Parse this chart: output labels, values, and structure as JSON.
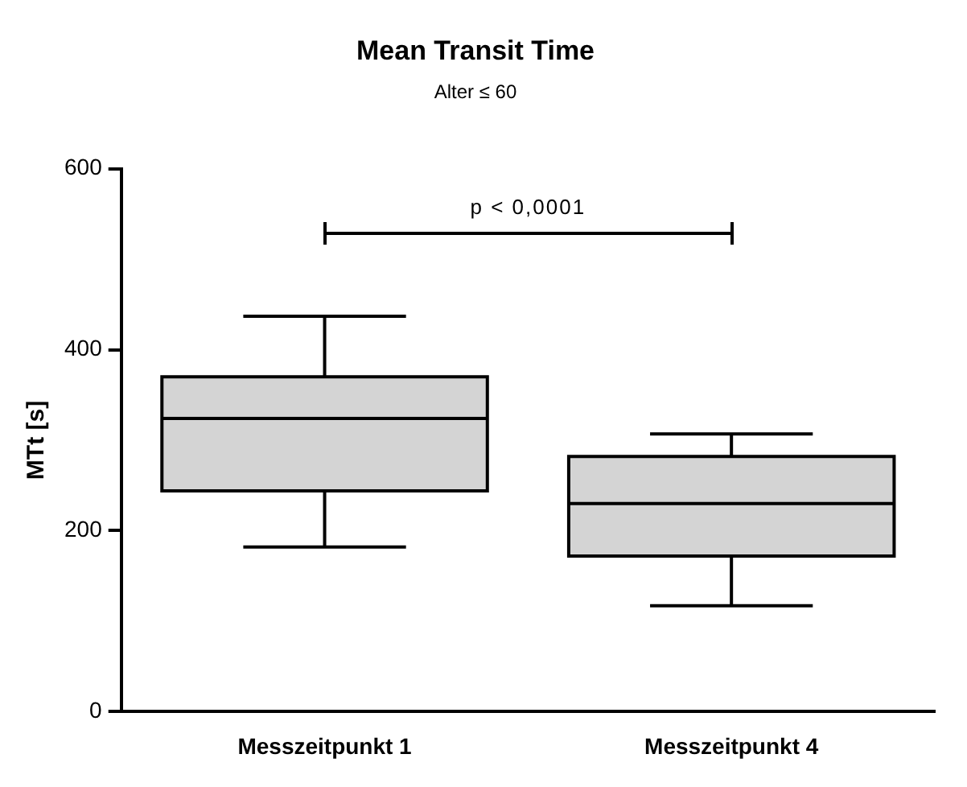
{
  "chart_data": {
    "type": "box",
    "title": "Mean Transit Time",
    "subtitle": "Alter ≤ 60",
    "ylabel": "MTt [s]",
    "categories": [
      "Messzeitpunkt 1",
      "Messzeitpunkt 4"
    ],
    "boxes": [
      {
        "low": 182,
        "q1": 244,
        "median": 324,
        "q3": 370,
        "high": 437
      },
      {
        "low": 117,
        "q1": 172,
        "median": 230,
        "q3": 282,
        "high": 307
      }
    ],
    "color": "#d4d4d4",
    "ylim": [
      0,
      600
    ],
    "yticks": [
      0,
      200,
      400,
      600
    ],
    "grid": false,
    "annotations": [
      "p < 0,0001"
    ]
  }
}
